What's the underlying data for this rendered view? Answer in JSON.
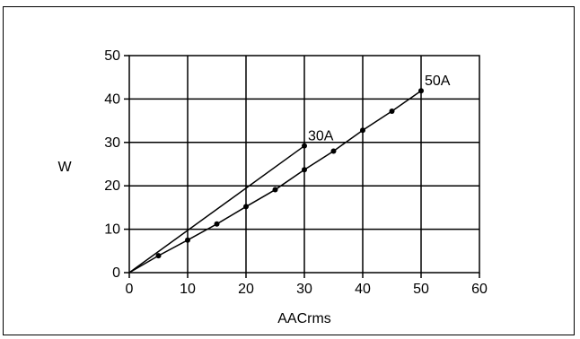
{
  "chart_data": {
    "type": "line",
    "title": "",
    "xlabel": "AACrms",
    "ylabel": "W",
    "xlim": [
      0,
      60
    ],
    "ylim": [
      0,
      50
    ],
    "xticks": [
      0,
      10,
      20,
      30,
      40,
      50,
      60
    ],
    "yticks": [
      0,
      10,
      20,
      30,
      40,
      50
    ],
    "grid": true,
    "legend": "none",
    "series": [
      {
        "name": "30A",
        "x": [
          0,
          30
        ],
        "y": [
          0,
          29.2
        ],
        "markers": false,
        "endpoint_marker": true
      },
      {
        "name": "50A",
        "x": [
          0,
          5,
          10,
          15,
          20,
          25,
          30,
          35,
          40,
          45,
          50
        ],
        "y": [
          0,
          3.9,
          7.5,
          11.2,
          15.2,
          19.1,
          23.7,
          28.0,
          32.8,
          37.2,
          41.9
        ],
        "markers": true
      }
    ]
  }
}
